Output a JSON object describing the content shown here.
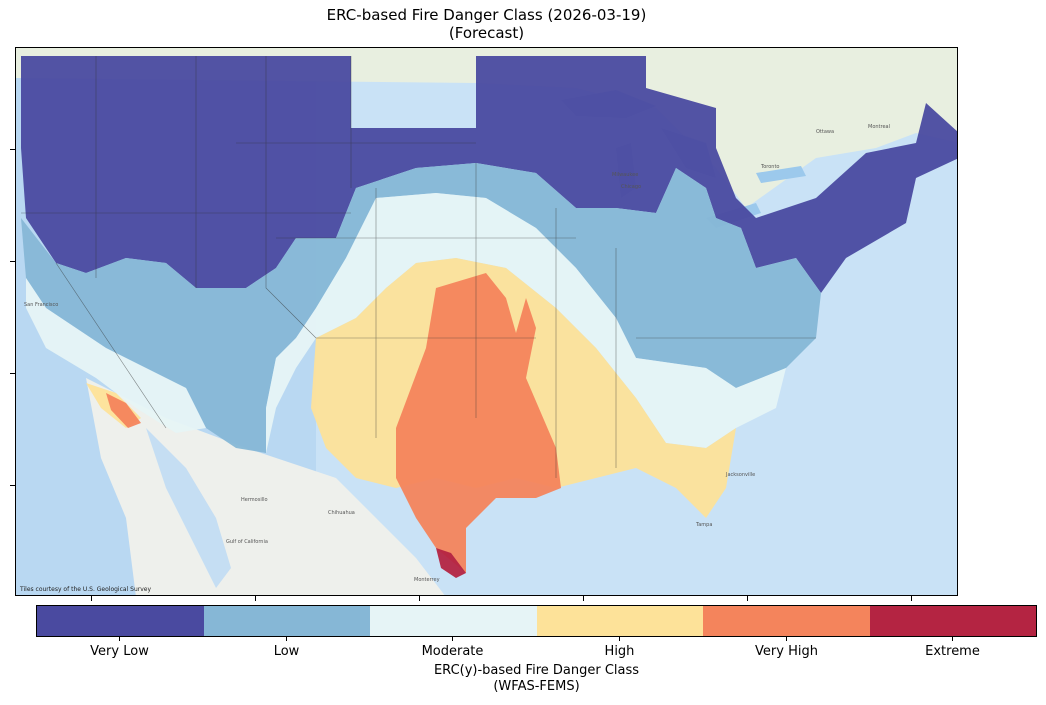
{
  "title": {
    "line1": "ERC-based Fire Danger Class (2026-03-19)",
    "line2": "(Forecast)"
  },
  "map": {
    "credit": "Tiles courtesy of the U.S. Geological Survey",
    "place_labels": [
      "Chicago",
      "Milwaukee",
      "Toronto",
      "Ottawa",
      "Montreal",
      "Jacksonville",
      "Tampa",
      "Monterrey",
      "Chihuahua",
      "Hermosillo",
      "San Francisco",
      "Gulf of California"
    ]
  },
  "colorbar": {
    "classes": [
      {
        "label": "Very Low",
        "color": "#4a4aa0"
      },
      {
        "label": "Low",
        "color": "#86b7d6"
      },
      {
        "label": "Moderate",
        "color": "#e6f4f6"
      },
      {
        "label": "High",
        "color": "#fde299"
      },
      {
        "label": "Very High",
        "color": "#f4845c"
      },
      {
        "label": "Extreme",
        "color": "#b42442"
      }
    ],
    "title_line1": "ERC(y)-based Fire Danger Class",
    "title_line2": "(WFAS-FEMS)"
  }
}
